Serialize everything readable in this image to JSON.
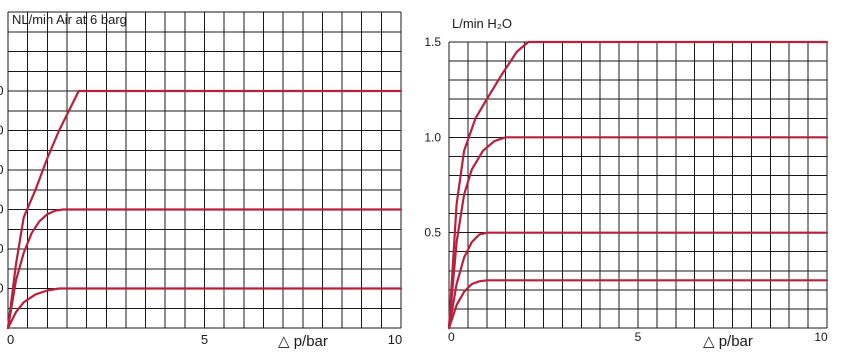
{
  "colors": {
    "curve": "#b8203c",
    "grid": "#1a1a1a"
  },
  "chart_data": [
    {
      "type": "line",
      "title": "NL/min Air at 6 barg",
      "xlabel": "△ p/bar",
      "xlim": [
        0,
        10
      ],
      "ylim": [
        0,
        8
      ],
      "x_ticks": [
        {
          "value": 0,
          "label": "0"
        },
        {
          "value": 5,
          "label": "5"
        },
        {
          "value": 10,
          "label": "10"
        }
      ],
      "y_ticks": [
        {
          "value": 1,
          "label": "0"
        },
        {
          "value": 2,
          "label": "0"
        },
        {
          "value": 3,
          "label": "0"
        },
        {
          "value": 4,
          "label": "0"
        },
        {
          "value": 5,
          "label": "0"
        },
        {
          "value": 6,
          "label": "0"
        }
      ],
      "grid": true,
      "series": [
        {
          "x": [
            0,
            0.2,
            0.4,
            0.7,
            1.0,
            1.3,
            1.6,
            10
          ],
          "y": [
            0,
            0.4,
            0.65,
            0.85,
            0.95,
            1.0,
            1.0,
            1.0
          ]
        },
        {
          "x": [
            0,
            0.2,
            0.4,
            0.6,
            0.8,
            1.0,
            1.2,
            1.4,
            10
          ],
          "y": [
            0,
            1.2,
            1.9,
            2.4,
            2.7,
            2.88,
            2.97,
            3.0,
            3.0
          ]
        },
        {
          "x": [
            0,
            0.2,
            0.4,
            0.7,
            1.0,
            1.3,
            1.6,
            1.8,
            10
          ],
          "y": [
            0,
            1.6,
            2.8,
            3.5,
            4.3,
            5.0,
            5.6,
            6.0,
            6.0
          ]
        }
      ]
    },
    {
      "type": "line",
      "title": "L/min H₂O",
      "xlabel": "△ p/bar",
      "xlim": [
        0,
        10
      ],
      "ylim": [
        0,
        1.5
      ],
      "x_ticks": [
        {
          "value": 0,
          "label": "0"
        },
        {
          "value": 5,
          "label": "5"
        },
        {
          "value": 10,
          "label": "10"
        }
      ],
      "y_ticks": [
        {
          "value": 0.5,
          "label": "0.5"
        },
        {
          "value": 1.0,
          "label": "1.0"
        },
        {
          "value": 1.5,
          "label": "1.5"
        }
      ],
      "grid": true,
      "series": [
        {
          "x": [
            0,
            0.2,
            0.4,
            0.6,
            0.8,
            1.0,
            10
          ],
          "y": [
            0,
            0.12,
            0.19,
            0.23,
            0.245,
            0.25,
            0.25
          ]
        },
        {
          "x": [
            0,
            0.2,
            0.4,
            0.6,
            0.8,
            1.0,
            10
          ],
          "y": [
            0,
            0.23,
            0.37,
            0.45,
            0.49,
            0.5,
            0.5
          ]
        },
        {
          "x": [
            0,
            0.2,
            0.4,
            0.6,
            0.9,
            1.2,
            1.5,
            10
          ],
          "y": [
            0,
            0.45,
            0.7,
            0.83,
            0.93,
            0.98,
            1.0,
            1.0
          ]
        },
        {
          "x": [
            0,
            0.2,
            0.4,
            0.7,
            1.0,
            1.4,
            1.8,
            2.1,
            10
          ],
          "y": [
            0,
            0.65,
            0.93,
            1.1,
            1.2,
            1.33,
            1.45,
            1.5,
            1.5
          ]
        }
      ]
    }
  ]
}
